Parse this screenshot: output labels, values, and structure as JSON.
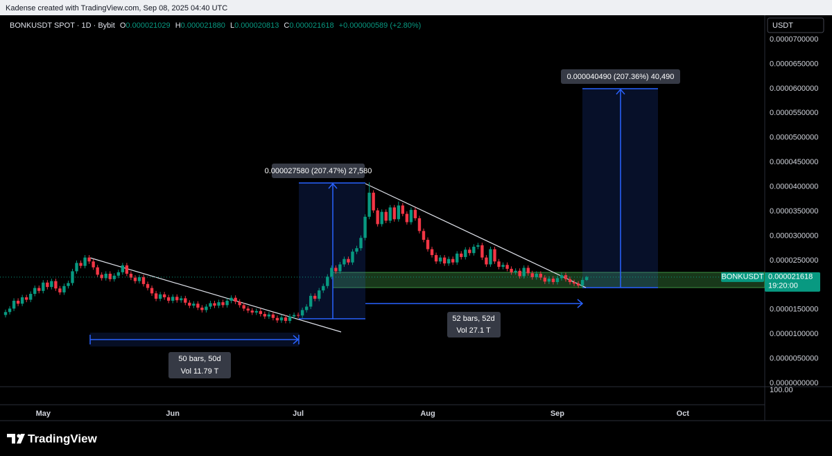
{
  "page": {
    "attribution": "Kadense created with TradingView.com, Sep 08, 2025 04:40 UTC",
    "symbol": "BONKUSDT SPOT · 1D · Bybit",
    "ohlc": [
      {
        "key": "O",
        "value": "0.000021029"
      },
      {
        "key": "H",
        "value": "0.000021880"
      },
      {
        "key": "L",
        "value": "0.000020813"
      },
      {
        "key": "C",
        "value": "0.000021618"
      }
    ],
    "change": "+0.000000589 (+2.80%)",
    "currency": "USDT",
    "pane_label": "100.00",
    "symbol_tag": "BONKUSDT",
    "countdown": "19:20:00",
    "measure_1": "0.000027580 (207.47%) 27,580",
    "range_1": {
      "bars": "50 bars, 50d",
      "volume": "Vol 11.79 T"
    },
    "range_2": {
      "bars": "52 bars, 52d",
      "volume": "Vol 27.1 T"
    },
    "measure_2": "0.000040490 (207.36%) 40,490",
    "brand": "TradingView"
  },
  "chart_data": {
    "type": "candlestick",
    "up_color": "#089981",
    "down_color": "#f23645",
    "grid": false,
    "last_price": {
      "value": 2.1618e-05,
      "label": "0.000021618"
    },
    "xlim": [
      -1.33,
      181.6
    ],
    "xticks": [
      {
        "value": 9,
        "label": "May"
      },
      {
        "value": 40,
        "label": "Jun"
      },
      {
        "value": 70,
        "label": "Jul"
      },
      {
        "value": 101,
        "label": "Aug"
      },
      {
        "value": 132,
        "label": "Sep"
      },
      {
        "value": 162,
        "label": "Oct"
      }
    ],
    "ylim": [
      -7.06e-07,
      7.494e-05
    ],
    "yticks": [
      {
        "value": 0,
        "label": "0.0000000000"
      },
      {
        "value": 5e-06,
        "label": "0.0000050000"
      },
      {
        "value": 1e-05,
        "label": "0.0000100000"
      },
      {
        "value": 1.5e-05,
        "label": "0.0000150000"
      },
      {
        "value": 2e-05,
        "label": "0.0000200000"
      },
      {
        "value": 2.5e-05,
        "label": "0.0000250000"
      },
      {
        "value": 3e-05,
        "label": "0.0000300000"
      },
      {
        "value": 3.5e-05,
        "label": "0.0000350000"
      },
      {
        "value": 4e-05,
        "label": "0.0000400000"
      },
      {
        "value": 4.5e-05,
        "label": "0.0000450000"
      },
      {
        "value": 5e-05,
        "label": "0.0000500000"
      },
      {
        "value": 5.5e-05,
        "label": "0.0000550000"
      },
      {
        "value": 6e-05,
        "label": "0.0000600000"
      },
      {
        "value": 6.5e-05,
        "label": "0.0000650000"
      },
      {
        "value": 7e-05,
        "label": "0.0000700000"
      }
    ],
    "open": [
      1.39e-05,
      1.45e-05,
      1.52e-05,
      1.68e-05,
      1.62e-05,
      1.75e-05,
      1.7e-05,
      1.82e-05,
      1.94e-05,
      1.88e-05,
      2.05e-05,
      1.96e-05,
      2.08e-05,
      1.93e-05,
      1.85e-05,
      1.98e-05,
      2.04e-05,
      2.28e-05,
      2.45e-05,
      2.39e-05,
      2.56e-05,
      2.48e-05,
      2.36e-05,
      2.21e-05,
      2.14e-05,
      2.23e-05,
      2.12e-05,
      2.19e-05,
      2.26e-05,
      2.4e-05,
      2.23e-05,
      2.15e-05,
      2.08e-05,
      2.16e-05,
      2.02e-05,
      1.94e-05,
      1.83e-05,
      1.72e-05,
      1.81e-05,
      1.75e-05,
      1.68e-05,
      1.76e-05,
      1.69e-05,
      1.73e-05,
      1.64e-05,
      1.58e-05,
      1.62e-05,
      1.54e-05,
      1.49e-05,
      1.56e-05,
      1.63e-05,
      1.58e-05,
      1.65e-05,
      1.59e-05,
      1.68e-05,
      1.74e-05,
      1.66e-05,
      1.59e-05,
      1.52e-05,
      1.48e-05,
      1.44e-05,
      1.47e-05,
      1.41e-05,
      1.36e-05,
      1.4e-05,
      1.33e-05,
      1.28e-05,
      1.34e-05,
      1.27e-05,
      1.36e-05,
      1.39e-05,
      1.38e-05,
      1.49e-05,
      1.56e-05,
      1.78e-05,
      1.72e-05,
      1.89e-05,
      1.98e-05,
      2.17e-05,
      2.35e-05,
      2.28e-05,
      2.42e-05,
      2.53e-05,
      2.46e-05,
      2.68e-05,
      2.75e-05,
      2.96e-05,
      3.39e-05,
      3.88e-05,
      3.52e-05,
      3.24e-05,
      3.49e-05,
      3.31e-05,
      3.58e-05,
      3.34e-05,
      3.62e-05,
      3.45e-05,
      3.28e-05,
      3.53e-05,
      3.36e-05,
      3.1e-05,
      2.92e-05,
      2.73e-05,
      2.61e-05,
      2.48e-05,
      2.56e-05,
      2.44e-05,
      2.53e-05,
      2.46e-05,
      2.64e-05,
      2.57e-05,
      2.72e-05,
      2.65e-05,
      2.78e-05,
      2.81e-05,
      2.56e-05,
      2.42e-05,
      2.73e-05,
      2.48e-05,
      2.37e-05,
      2.41e-05,
      2.33e-05,
      2.26e-05,
      2.29e-05,
      2.18e-05,
      2.35e-05,
      2.24e-05,
      2.16e-05,
      2.23e-05,
      2.15e-05,
      2.07e-05,
      2.13e-05,
      2.06e-05,
      2.14e-05,
      2.2e-05,
      2.12e-05,
      2.06e-05,
      2.03e-05,
      1.99e-05,
      2.1029e-05
    ],
    "high": [
      1.5e-05,
      1.57e-05,
      1.73e-05,
      1.73e-05,
      1.8e-05,
      1.8e-05,
      1.87e-05,
      1.99e-05,
      1.99e-05,
      2.1e-05,
      2.1e-05,
      2.13e-05,
      2.13e-05,
      1.98e-05,
      2.03e-05,
      2.09e-05,
      2.33e-05,
      2.5e-05,
      2.5e-05,
      2.61e-05,
      2.61e-05,
      2.53e-05,
      2.41e-05,
      2.26e-05,
      2.28e-05,
      2.28e-05,
      2.24e-05,
      2.31e-05,
      2.45e-05,
      2.45e-05,
      2.28e-05,
      2.2e-05,
      2.21e-05,
      2.21e-05,
      2.07e-05,
      1.99e-05,
      1.88e-05,
      1.86e-05,
      1.86e-05,
      1.8e-05,
      1.81e-05,
      1.81e-05,
      1.78e-05,
      1.78e-05,
      1.69e-05,
      1.67e-05,
      1.67e-05,
      1.59e-05,
      1.61e-05,
      1.68e-05,
      1.68e-05,
      1.7e-05,
      1.7e-05,
      1.73e-05,
      1.79e-05,
      1.79e-05,
      1.71e-05,
      1.64e-05,
      1.57e-05,
      1.53e-05,
      1.52e-05,
      1.52e-05,
      1.46e-05,
      1.45e-05,
      1.45e-05,
      1.38e-05,
      1.39e-05,
      1.39e-05,
      1.41e-05,
      1.44e-05,
      1.44e-05,
      1.54e-05,
      1.61e-05,
      1.83e-05,
      1.83e-05,
      1.94e-05,
      2.03e-05,
      2.22e-05,
      2.4e-05,
      2.4e-05,
      2.47e-05,
      2.58e-05,
      2.58e-05,
      2.73e-05,
      2.8e-05,
      3.01e-05,
      3.44e-05,
      4.09e-05,
      3.93e-05,
      3.57e-05,
      3.54e-05,
      3.54e-05,
      3.63e-05,
      3.63e-05,
      3.7e-05,
      3.67e-05,
      3.5e-05,
      3.58e-05,
      3.58e-05,
      3.41e-05,
      3.15e-05,
      2.97e-05,
      2.78e-05,
      2.66e-05,
      2.61e-05,
      2.61e-05,
      2.58e-05,
      2.58e-05,
      2.69e-05,
      2.69e-05,
      2.77e-05,
      2.77e-05,
      2.83e-05,
      2.86e-05,
      2.86e-05,
      2.61e-05,
      2.78e-05,
      2.78e-05,
      2.53e-05,
      2.46e-05,
      2.46e-05,
      2.38e-05,
      2.34e-05,
      2.34e-05,
      2.4e-05,
      2.4e-05,
      2.29e-05,
      2.28e-05,
      2.28e-05,
      2.2e-05,
      2.18e-05,
      2.18e-05,
      2.19e-05,
      2.25e-05,
      2.25e-05,
      2.17e-05,
      2.11e-05,
      2.08e-05,
      2.15e-05,
      2.188e-05
    ],
    "low": [
      1.34e-05,
      1.4e-05,
      1.47e-05,
      1.57e-05,
      1.57e-05,
      1.65e-05,
      1.65e-05,
      1.77e-05,
      1.83e-05,
      1.83e-05,
      1.91e-05,
      1.91e-05,
      1.88e-05,
      1.8e-05,
      1.8e-05,
      1.93e-05,
      1.99e-05,
      2.23e-05,
      2.34e-05,
      2.34e-05,
      2.43e-05,
      2.31e-05,
      2.16e-05,
      2.09e-05,
      2.09e-05,
      2.07e-05,
      2.07e-05,
      2.14e-05,
      2.21e-05,
      2.18e-05,
      2.1e-05,
      2.03e-05,
      2.03e-05,
      1.97e-05,
      1.89e-05,
      1.78e-05,
      1.67e-05,
      1.67e-05,
      1.7e-05,
      1.63e-05,
      1.63e-05,
      1.64e-05,
      1.64e-05,
      1.59e-05,
      1.53e-05,
      1.53e-05,
      1.49e-05,
      1.44e-05,
      1.44e-05,
      1.51e-05,
      1.53e-05,
      1.53e-05,
      1.54e-05,
      1.54e-05,
      1.63e-05,
      1.61e-05,
      1.54e-05,
      1.47e-05,
      1.43e-05,
      1.39e-05,
      1.39e-05,
      1.36e-05,
      1.31e-05,
      1.31e-05,
      1.28e-05,
      1.23e-05,
      1.23e-05,
      1.22e-05,
      1.22e-05,
      1.31e-05,
      1.33e-05,
      1.33e-05,
      1.44e-05,
      1.51e-05,
      1.67e-05,
      1.67e-05,
      1.84e-05,
      1.93e-05,
      2.12e-05,
      2.23e-05,
      2.23e-05,
      2.37e-05,
      2.41e-05,
      2.41e-05,
      2.63e-05,
      2.7e-05,
      2.91e-05,
      3.34e-05,
      3.47e-05,
      3.19e-05,
      3.19e-05,
      3.26e-05,
      3.26e-05,
      3.29e-05,
      3.29e-05,
      3.4e-05,
      3.23e-05,
      3.23e-05,
      3.31e-05,
      3.05e-05,
      2.87e-05,
      2.68e-05,
      2.56e-05,
      2.43e-05,
      2.43e-05,
      2.39e-05,
      2.39e-05,
      2.41e-05,
      2.41e-05,
      2.52e-05,
      2.52e-05,
      2.6e-05,
      2.6e-05,
      2.73e-05,
      2.51e-05,
      2.37e-05,
      2.37e-05,
      2.43e-05,
      2.32e-05,
      2.32e-05,
      2.28e-05,
      2.21e-05,
      2.21e-05,
      2.13e-05,
      2.13e-05,
      2.19e-05,
      2.11e-05,
      2.11e-05,
      2.1e-05,
      2.02e-05,
      2.02e-05,
      2.01e-05,
      2.01e-05,
      2.09e-05,
      2.07e-05,
      2.01e-05,
      1.98e-05,
      1.94e-05,
      1.94e-05,
      2.0813e-05
    ],
    "close": [
      1.45e-05,
      1.52e-05,
      1.68e-05,
      1.62e-05,
      1.75e-05,
      1.7e-05,
      1.82e-05,
      1.94e-05,
      1.88e-05,
      2.05e-05,
      1.96e-05,
      2.08e-05,
      1.93e-05,
      1.85e-05,
      1.98e-05,
      2.04e-05,
      2.28e-05,
      2.45e-05,
      2.39e-05,
      2.56e-05,
      2.48e-05,
      2.36e-05,
      2.21e-05,
      2.14e-05,
      2.23e-05,
      2.12e-05,
      2.19e-05,
      2.26e-05,
      2.4e-05,
      2.23e-05,
      2.15e-05,
      2.08e-05,
      2.16e-05,
      2.02e-05,
      1.94e-05,
      1.83e-05,
      1.72e-05,
      1.81e-05,
      1.75e-05,
      1.68e-05,
      1.76e-05,
      1.69e-05,
      1.73e-05,
      1.64e-05,
      1.58e-05,
      1.62e-05,
      1.54e-05,
      1.49e-05,
      1.56e-05,
      1.63e-05,
      1.58e-05,
      1.65e-05,
      1.59e-05,
      1.68e-05,
      1.74e-05,
      1.66e-05,
      1.59e-05,
      1.52e-05,
      1.48e-05,
      1.44e-05,
      1.47e-05,
      1.41e-05,
      1.36e-05,
      1.4e-05,
      1.33e-05,
      1.28e-05,
      1.34e-05,
      1.27e-05,
      1.36e-05,
      1.39e-05,
      1.38e-05,
      1.49e-05,
      1.56e-05,
      1.78e-05,
      1.72e-05,
      1.89e-05,
      1.98e-05,
      2.17e-05,
      2.35e-05,
      2.28e-05,
      2.42e-05,
      2.53e-05,
      2.46e-05,
      2.68e-05,
      2.75e-05,
      2.96e-05,
      3.39e-05,
      3.88e-05,
      3.52e-05,
      3.24e-05,
      3.49e-05,
      3.31e-05,
      3.58e-05,
      3.34e-05,
      3.62e-05,
      3.45e-05,
      3.28e-05,
      3.53e-05,
      3.36e-05,
      3.1e-05,
      2.92e-05,
      2.73e-05,
      2.61e-05,
      2.48e-05,
      2.56e-05,
      2.44e-05,
      2.53e-05,
      2.46e-05,
      2.64e-05,
      2.57e-05,
      2.72e-05,
      2.65e-05,
      2.78e-05,
      2.81e-05,
      2.56e-05,
      2.42e-05,
      2.73e-05,
      2.48e-05,
      2.37e-05,
      2.41e-05,
      2.33e-05,
      2.26e-05,
      2.29e-05,
      2.18e-05,
      2.35e-05,
      2.24e-05,
      2.16e-05,
      2.23e-05,
      2.15e-05,
      2.07e-05,
      2.13e-05,
      2.06e-05,
      2.14e-05,
      2.2e-05,
      2.12e-05,
      2.06e-05,
      2.03e-05,
      1.99e-05,
      2.1029e-05,
      2.1618e-05
    ]
  }
}
